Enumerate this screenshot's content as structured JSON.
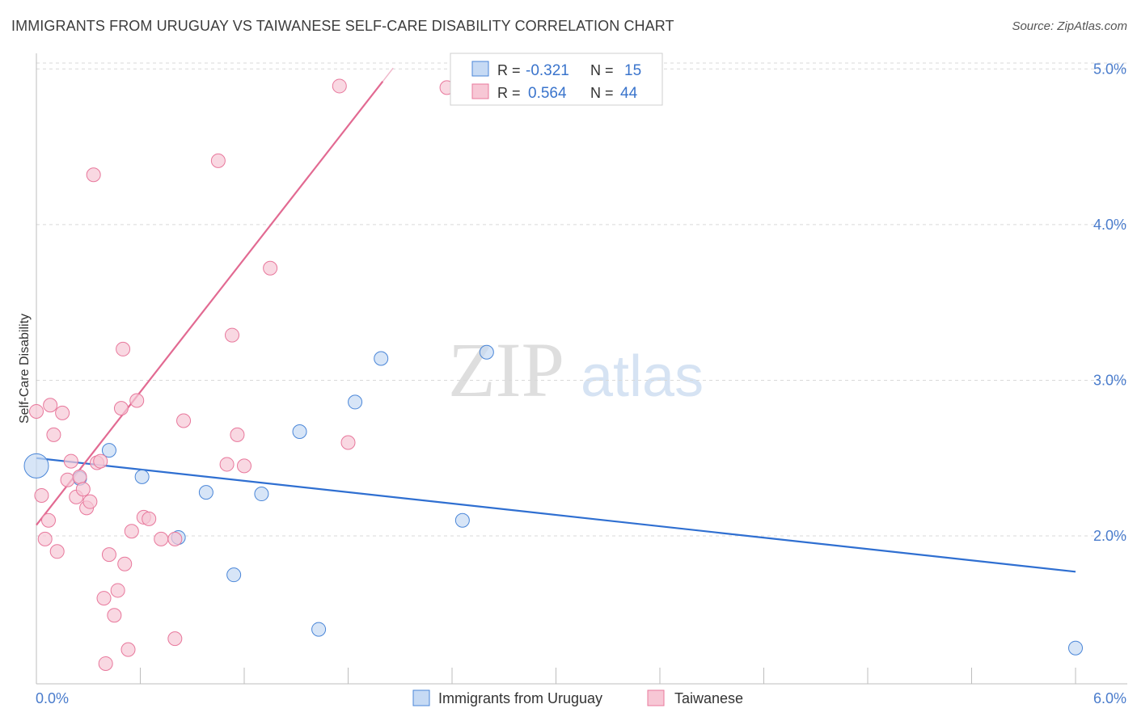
{
  "header": {
    "title": "IMMIGRANTS FROM URUGUAY VS TAIWANESE SELF-CARE DISABILITY CORRELATION CHART",
    "source": "Source: ZipAtlas.com"
  },
  "watermark": {
    "zip": "ZIP",
    "atlas": "atlas"
  },
  "colors": {
    "blue": "#4a86d8",
    "blue_fill": "#c6daf4",
    "blue_line": "#2f6fd1",
    "pink": "#e8789c",
    "pink_fill": "#f7c7d5",
    "pink_line": "#e26a92",
    "grid": "#d9d9d9",
    "axis_text": "#4a7ccc"
  },
  "legend_top": {
    "rows": [
      {
        "r_label": "R =",
        "r_value": "-0.321",
        "n_label": "N =",
        "n_value": "15"
      },
      {
        "r_label": "R =",
        "r_value": "0.564",
        "n_label": "N =",
        "n_value": "44"
      }
    ]
  },
  "legend_bottom": {
    "items": [
      "Immigrants from Uruguay",
      "Taiwanese"
    ]
  },
  "chart_data": {
    "type": "scatter",
    "title": "IMMIGRANTS FROM URUGUAY VS TAIWANESE SELF-CARE DISABILITY CORRELATION CHART",
    "xlabel": "",
    "ylabel": "Self-Care Disability",
    "xlim": [
      0.0,
      6.0
    ],
    "ylim": [
      1.05,
      5.1
    ],
    "x_tick_labels": [
      "0.0%",
      "6.0%"
    ],
    "y_ticks": [
      2.0,
      3.0,
      4.0,
      5.0
    ],
    "y_tick_labels": [
      "2.0%",
      "3.0%",
      "4.0%",
      "5.0%"
    ],
    "grid": true,
    "series": [
      {
        "name": "Immigrants from Uruguay",
        "r": -0.321,
        "n": 15,
        "points": [
          [
            0.0,
            2.45
          ],
          [
            0.25,
            2.37
          ],
          [
            0.42,
            2.55
          ],
          [
            0.61,
            2.38
          ],
          [
            0.82,
            1.99
          ],
          [
            0.98,
            2.28
          ],
          [
            1.14,
            1.75
          ],
          [
            1.3,
            2.27
          ],
          [
            1.52,
            2.67
          ],
          [
            1.63,
            1.4
          ],
          [
            1.84,
            2.86
          ],
          [
            1.99,
            3.14
          ],
          [
            2.46,
            2.1
          ],
          [
            2.6,
            3.18
          ],
          [
            6.0,
            1.28
          ]
        ],
        "trend": {
          "x": [
            0.0,
            6.0
          ],
          "y": [
            2.5,
            1.77
          ]
        }
      },
      {
        "name": "Taiwanese",
        "r": 0.564,
        "n": 44,
        "points": [
          [
            0.0,
            2.8
          ],
          [
            0.03,
            2.26
          ],
          [
            0.05,
            1.98
          ],
          [
            0.07,
            2.1
          ],
          [
            0.08,
            2.84
          ],
          [
            0.1,
            2.65
          ],
          [
            0.12,
            1.9
          ],
          [
            0.15,
            2.79
          ],
          [
            0.18,
            2.36
          ],
          [
            0.2,
            2.48
          ],
          [
            0.23,
            2.25
          ],
          [
            0.25,
            2.38
          ],
          [
            0.27,
            2.3
          ],
          [
            0.29,
            2.18
          ],
          [
            0.31,
            2.22
          ],
          [
            0.33,
            4.32
          ],
          [
            0.35,
            2.47
          ],
          [
            0.37,
            2.48
          ],
          [
            0.39,
            1.6
          ],
          [
            0.42,
            1.88
          ],
          [
            0.45,
            1.49
          ],
          [
            0.47,
            1.65
          ],
          [
            0.49,
            2.82
          ],
          [
            0.5,
            3.2
          ],
          [
            0.51,
            1.82
          ],
          [
            0.53,
            1.27
          ],
          [
            0.55,
            2.03
          ],
          [
            0.58,
            2.87
          ],
          [
            0.62,
            2.12
          ],
          [
            0.65,
            2.11
          ],
          [
            0.4,
            1.18
          ],
          [
            0.72,
            1.98
          ],
          [
            0.8,
            1.34
          ],
          [
            0.85,
            2.74
          ],
          [
            1.05,
            4.41
          ],
          [
            1.1,
            2.46
          ],
          [
            1.13,
            3.29
          ],
          [
            1.16,
            2.65
          ],
          [
            1.2,
            2.45
          ],
          [
            1.35,
            3.72
          ],
          [
            1.75,
            4.89
          ],
          [
            1.8,
            2.6
          ],
          [
            2.37,
            4.88
          ],
          [
            0.8,
            1.98
          ]
        ],
        "trend": {
          "x": [
            0.0,
            2.0
          ],
          "y": [
            2.07,
            4.92
          ]
        }
      }
    ]
  }
}
